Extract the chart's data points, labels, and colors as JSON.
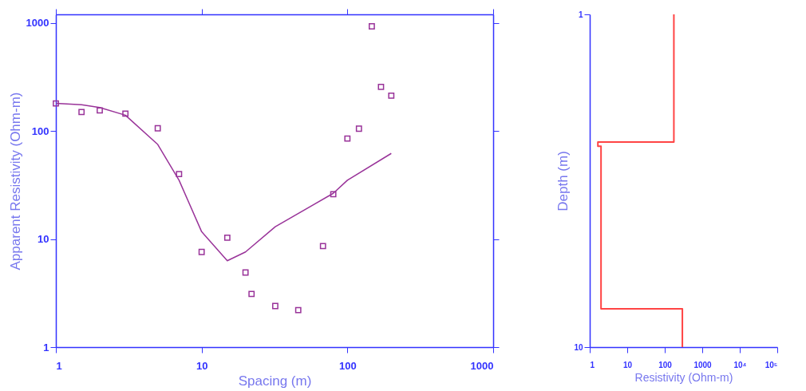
{
  "chart_data": [
    {
      "type": "scatter",
      "xlabel": "Spacing (m)",
      "ylabel": "Apparent Resistivity  (Ohm-m)",
      "log": "xy",
      "grid": false,
      "xlim": [
        1,
        1000
      ],
      "ylim": [
        1,
        1200
      ],
      "xticks": [
        1,
        10,
        100,
        1000
      ],
      "yticks": [
        1,
        10,
        100,
        1000
      ],
      "series": [
        {
          "marker": "square",
          "color": "#993399",
          "x": [
            1,
            1.5,
            2,
            3,
            5,
            7,
            10,
            15,
            20,
            22,
            32,
            46,
            68,
            80,
            100,
            120,
            147,
            170,
            200
          ],
          "values": [
            180,
            150,
            155,
            145,
            106,
            40,
            7.6,
            10.3,
            4.9,
            3.1,
            2.4,
            2.2,
            8.6,
            26,
            85,
            105,
            930,
            256,
            212
          ]
        },
        {
          "type": "line",
          "marker": "none",
          "color": "#993399",
          "x": [
            1,
            1.5,
            2,
            3,
            5,
            7,
            10,
            15,
            20,
            32,
            80,
            100,
            200
          ],
          "values": [
            180,
            175,
            165,
            140,
            75,
            35,
            11.7,
            6.3,
            7.6,
            13,
            26.5,
            35,
            62
          ]
        }
      ]
    },
    {
      "type": "line",
      "xlabel": "Resistivity (Ohm-m)",
      "ylabel": "Depth (m)",
      "log": "xy",
      "grid": false,
      "xlim": [
        1,
        100000
      ],
      "ylim": [
        10,
        1
      ],
      "xticks": [
        1,
        10,
        100,
        1000,
        {
          "value": 10000,
          "label": "10⁴"
        },
        {
          "value": 100000,
          "label": "10⁵"
        }
      ],
      "yticks": [
        1,
        10
      ],
      "series": [
        {
          "marker": "none",
          "color": "#ff4444",
          "x": [
            175,
            175,
            1.65,
            1.65,
            2.0,
            2.0,
            295,
            295
          ],
          "values": [
            1,
            2.42,
            2.42,
            2.49,
            2.49,
            7.67,
            7.67,
            10
          ]
        }
      ]
    }
  ]
}
